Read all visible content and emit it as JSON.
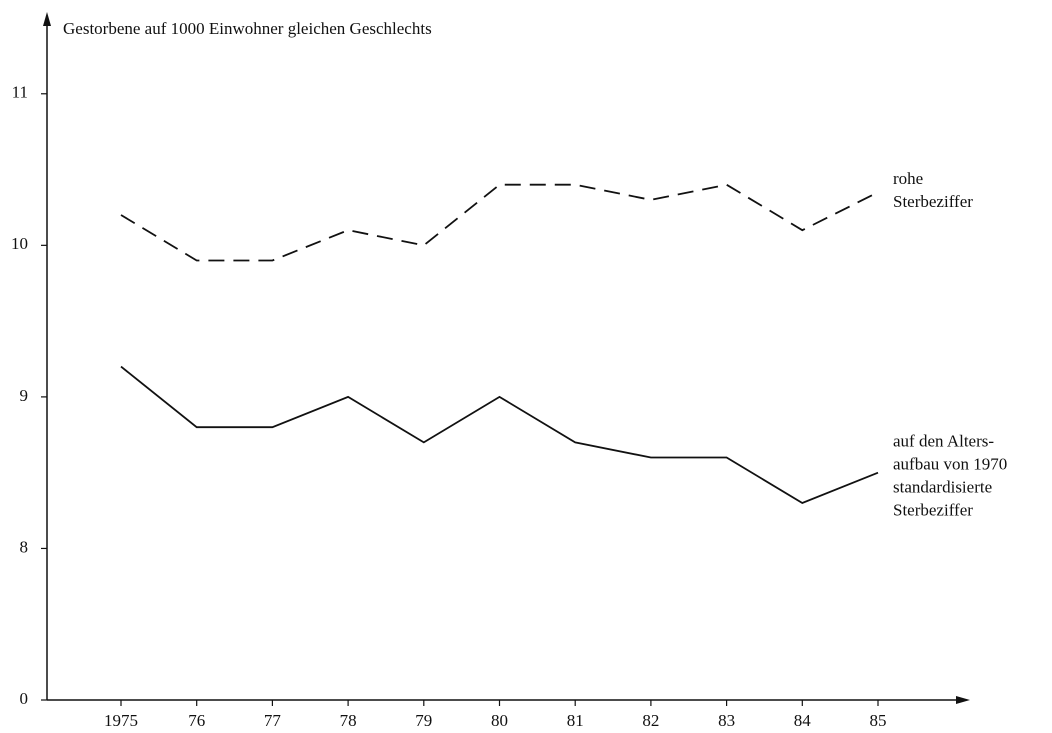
{
  "chart_data": {
    "type": "line",
    "title": "Gestorbene auf 1000 Einwohner gleichen Geschlechts",
    "categories": [
      "1975",
      "76",
      "77",
      "78",
      "79",
      "80",
      "81",
      "82",
      "83",
      "84",
      "85"
    ],
    "series": [
      {
        "label_lines": [
          "rohe",
          "Sterbeziffer"
        ],
        "color": "#111111",
        "dashed": true,
        "values": [
          10.2,
          9.9,
          9.9,
          10.1,
          10.0,
          10.4,
          10.4,
          10.3,
          10.4,
          10.1,
          10.35
        ]
      },
      {
        "label_lines": [
          "auf den Alters-",
          "aufbau von 1970",
          "standardisierte",
          "Sterbeziffer"
        ],
        "color": "#111111",
        "dashed": false,
        "values": [
          9.2,
          8.8,
          8.8,
          9.0,
          8.7,
          9.0,
          8.7,
          8.6,
          8.6,
          8.3,
          8.5
        ]
      }
    ],
    "ylim": [
      0,
      11.5
    ],
    "y_break": [
      0,
      7
    ],
    "yticks": [
      0,
      8,
      9,
      10,
      11
    ],
    "grid": false
  }
}
